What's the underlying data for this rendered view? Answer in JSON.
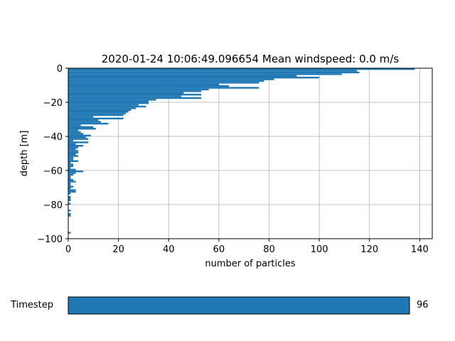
{
  "chart_data": {
    "type": "bar",
    "orientation": "horizontal",
    "title": "2020-01-24 10:06:49.096654   Mean windspeed: 0.0 m/s",
    "xlabel": "number of particles",
    "ylabel": "depth [m]",
    "xlim": [
      0,
      145
    ],
    "ylim": [
      -100,
      0
    ],
    "xticks": [
      0,
      20,
      40,
      60,
      80,
      100,
      120,
      140
    ],
    "yticks": [
      0,
      -20,
      -40,
      -60,
      -80,
      -100
    ],
    "grid": true,
    "bar_color": "#1f77b4",
    "bin_height": 1,
    "bars": [
      {
        "depth": 0,
        "value": 138
      },
      {
        "depth": -1,
        "value": 115
      },
      {
        "depth": -2,
        "value": 116
      },
      {
        "depth": -3,
        "value": 109
      },
      {
        "depth": -4,
        "value": 91
      },
      {
        "depth": -5,
        "value": 100
      },
      {
        "depth": -6,
        "value": 82
      },
      {
        "depth": -7,
        "value": 78
      },
      {
        "depth": -8,
        "value": 76
      },
      {
        "depth": -9,
        "value": 60
      },
      {
        "depth": -10,
        "value": 64
      },
      {
        "depth": -11,
        "value": 76
      },
      {
        "depth": -12,
        "value": 56
      },
      {
        "depth": -13,
        "value": 53
      },
      {
        "depth": -14,
        "value": 46
      },
      {
        "depth": -15,
        "value": 53
      },
      {
        "depth": -16,
        "value": 45
      },
      {
        "depth": -17,
        "value": 53
      },
      {
        "depth": -18,
        "value": 35
      },
      {
        "depth": -19,
        "value": 32
      },
      {
        "depth": -20,
        "value": 32
      },
      {
        "depth": -21,
        "value": 28
      },
      {
        "depth": -22,
        "value": 31
      },
      {
        "depth": -23,
        "value": 27
      },
      {
        "depth": -24,
        "value": 25
      },
      {
        "depth": -25,
        "value": 24
      },
      {
        "depth": -26,
        "value": 23
      },
      {
        "depth": -27,
        "value": 22
      },
      {
        "depth": -28,
        "value": 10
      },
      {
        "depth": -29,
        "value": 22
      },
      {
        "depth": -30,
        "value": 12
      },
      {
        "depth": -31,
        "value": 13
      },
      {
        "depth": -32,
        "value": 16
      },
      {
        "depth": -33,
        "value": 5
      },
      {
        "depth": -34,
        "value": 10
      },
      {
        "depth": -35,
        "value": 11
      },
      {
        "depth": -36,
        "value": 4
      },
      {
        "depth": -37,
        "value": 5
      },
      {
        "depth": -38,
        "value": 6
      },
      {
        "depth": -39,
        "value": 9
      },
      {
        "depth": -40,
        "value": 7
      },
      {
        "depth": -41,
        "value": 8
      },
      {
        "depth": -42,
        "value": 2
      },
      {
        "depth": -43,
        "value": 8
      },
      {
        "depth": -44,
        "value": 3
      },
      {
        "depth": -45,
        "value": 6
      },
      {
        "depth": -46,
        "value": 4
      },
      {
        "depth": -47,
        "value": 3
      },
      {
        "depth": -48,
        "value": 4
      },
      {
        "depth": -49,
        "value": 4
      },
      {
        "depth": -50,
        "value": 3
      },
      {
        "depth": -51,
        "value": 4
      },
      {
        "depth": -52,
        "value": 2
      },
      {
        "depth": -53,
        "value": 2
      },
      {
        "depth": -54,
        "value": 4
      },
      {
        "depth": -55,
        "value": 1
      },
      {
        "depth": -56,
        "value": 2
      },
      {
        "depth": -57,
        "value": 2
      },
      {
        "depth": -58,
        "value": 1
      },
      {
        "depth": -59,
        "value": 3
      },
      {
        "depth": -60,
        "value": 6
      },
      {
        "depth": -61,
        "value": 3
      },
      {
        "depth": -62,
        "value": 2
      },
      {
        "depth": -63,
        "value": 1
      },
      {
        "depth": -64,
        "value": 1
      },
      {
        "depth": -65,
        "value": 2
      },
      {
        "depth": -66,
        "value": 3
      },
      {
        "depth": -67,
        "value": 1
      },
      {
        "depth": -68,
        "value": 1
      },
      {
        "depth": -69,
        "value": 2
      },
      {
        "depth": -70,
        "value": 1
      },
      {
        "depth": -71,
        "value": 3
      },
      {
        "depth": -72,
        "value": 3
      },
      {
        "depth": -73,
        "value": 1
      },
      {
        "depth": -75,
        "value": 1
      },
      {
        "depth": -76,
        "value": 1
      },
      {
        "depth": -77,
        "value": 1
      },
      {
        "depth": -79,
        "value": 1
      },
      {
        "depth": -83,
        "value": 1
      },
      {
        "depth": -85,
        "value": 1
      },
      {
        "depth": -86,
        "value": 1
      },
      {
        "depth": -96,
        "value": 1
      }
    ]
  },
  "slider": {
    "label": "Timestep",
    "value_text": "96",
    "fraction": 1.0,
    "color": "#1f77b4"
  }
}
